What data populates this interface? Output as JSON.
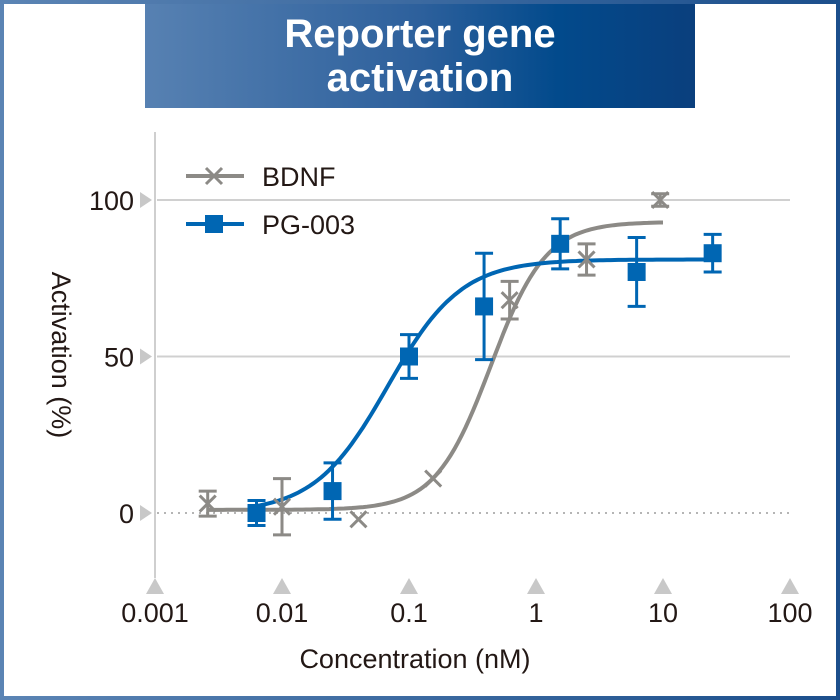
{
  "chart_data": {
    "type": "scatter",
    "title": "Reporter gene activation",
    "xlabel": "Concentration (nM)",
    "ylabel": "Activation (%)",
    "xscale": "log",
    "xlim": [
      0.001,
      100
    ],
    "ylim": [
      -20,
      120
    ],
    "xticks": [
      "0.001",
      "0.01",
      "0.1",
      "1",
      "10",
      "100"
    ],
    "xtick_values": [
      0.001,
      0.01,
      0.1,
      1,
      10,
      100
    ],
    "yticks": [
      "0",
      "50",
      "100"
    ],
    "ytick_values": [
      0,
      50,
      100
    ],
    "grid": "horizontal at 50 and 100; dotted baseline at 0",
    "legend_position": "top-left",
    "series": [
      {
        "name": "BDNF",
        "color": "#8c8a86",
        "marker": "x",
        "x": [
          0.0026,
          0.01,
          0.04,
          0.155,
          0.62,
          2.5,
          9.5
        ],
        "y": [
          3,
          2,
          -2,
          11,
          68,
          81,
          100
        ],
        "err": [
          4,
          9,
          0,
          0,
          6,
          5,
          2
        ],
        "fit": {
          "bottom": 1,
          "top": 93,
          "ec50": 0.44,
          "hill": 2.0,
          "xrange": [
            0.0026,
            10
          ]
        }
      },
      {
        "name": "PG-003",
        "color": "#0066b3",
        "marker": "square",
        "x": [
          0.0063,
          0.025,
          0.1,
          0.39,
          1.55,
          6.2,
          24.6
        ],
        "y": [
          0,
          7,
          50,
          66,
          86,
          77,
          83
        ],
        "err": [
          4,
          9,
          7,
          17,
          8,
          11,
          6
        ],
        "fit": {
          "bottom": 0,
          "top": 81,
          "ec50": 0.068,
          "hill": 1.5,
          "xrange": [
            0.0063,
            25
          ]
        }
      }
    ]
  }
}
